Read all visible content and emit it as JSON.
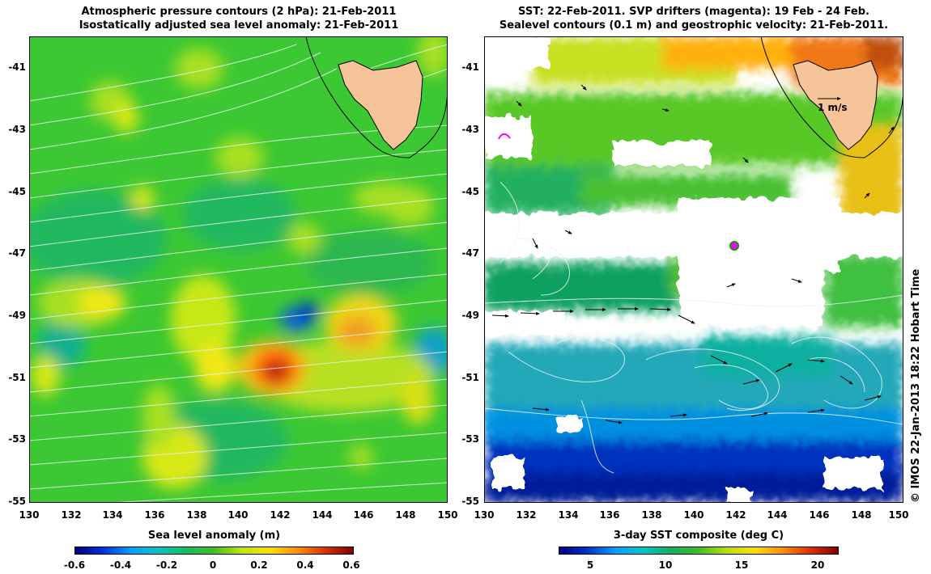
{
  "left_panel": {
    "title_line1": "Atmospheric pressure contours (2 hPa): 21-Feb-2011",
    "title_line2": "Isostatically adjusted sea level anomaly: 21-Feb-2011",
    "y_ticks": [
      "-41",
      "-43",
      "-45",
      "-47",
      "-49",
      "-51",
      "-53",
      "-55"
    ],
    "x_ticks": [
      "130",
      "132",
      "134",
      "136",
      "138",
      "140",
      "142",
      "144",
      "146",
      "148",
      "150"
    ],
    "colorbar_title": "Sea level anomaly (m)",
    "colorbar_ticks": [
      "-0.6",
      "-0.4",
      "-0.2",
      "0",
      "0.2",
      "0.4",
      "0.6"
    ]
  },
  "right_panel": {
    "title_line1": "SST: 22-Feb-2011. SVP drifters (magenta): 19 Feb - 24 Feb.",
    "title_line2": "Sealevel contours (0.1 m) and geostrophic velocity: 21-Feb-2011.",
    "y_ticks": [
      "-41",
      "-43",
      "-45",
      "-47",
      "-49",
      "-51",
      "-53",
      "-55"
    ],
    "x_ticks": [
      "130",
      "132",
      "134",
      "136",
      "138",
      "140",
      "142",
      "144",
      "146",
      "148",
      "150"
    ],
    "scale_label": "1 m/s",
    "colorbar_title": "3-day SST composite (deg C)",
    "colorbar_ticks": [
      "5",
      "10",
      "15",
      "20"
    ]
  },
  "credit": "© IMOS 22-Jan-2013 18:22 Hobart Time",
  "colors": {
    "land": "#f7c49a",
    "sla_scale": [
      "#00007f",
      "#0050ff",
      "#00c0ff",
      "#00d080",
      "#20c020",
      "#80e000",
      "#ffff00",
      "#ffb000",
      "#ff5000",
      "#b01000",
      "#7f0000"
    ],
    "sst_scale": [
      "#000080",
      "#0030d0",
      "#00a0ff",
      "#00c0a0",
      "#20b020",
      "#a0e000",
      "#ffe000",
      "#ff9000",
      "#e04000",
      "#800000"
    ],
    "drifter": "#ff00ff"
  }
}
